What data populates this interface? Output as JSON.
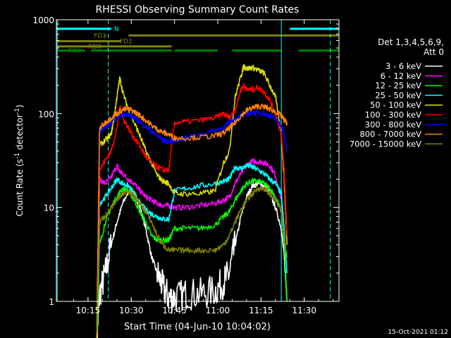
{
  "chart_data": {
    "type": "line",
    "title": "RHESSI Observing Summary Count Rates",
    "xlabel": "Start Time (04-Jun-10 10:04:02)",
    "ylabel_main": "Count Rate (s",
    "ylabel_sup1": "-1",
    "ylabel_mid": " detector",
    "ylabel_sup2": "-1",
    "ylabel_end": ")",
    "yscale": "log",
    "ylim": [
      1,
      1000
    ],
    "xlim_minutes": [
      0,
      98
    ],
    "x_ticks": [
      {
        "label": "10:15",
        "min": 10.97
      },
      {
        "label": "10:30",
        "min": 25.97
      },
      {
        "label": "10:45",
        "min": 40.97
      },
      {
        "label": "11:00",
        "min": 55.97
      },
      {
        "label": "11:15",
        "min": 70.97
      },
      {
        "label": "11:30",
        "min": 85.97
      }
    ],
    "y_ticks": [
      {
        "label": "1",
        "value": 1
      },
      {
        "label": "10",
        "value": 10
      },
      {
        "label": "100",
        "value": 100
      },
      {
        "label": "1000",
        "value": 1000
      }
    ],
    "legend_header": [
      "Det 1,3,4,5,6,9,",
      "Att 0"
    ],
    "timestamp": "15-Oct-2021 01:12",
    "series": [
      {
        "name": "3 - 6 keV",
        "color": "#ffffff",
        "points": [
          [
            14,
            0.4
          ],
          [
            15,
            1.2
          ],
          [
            17,
            2
          ],
          [
            19,
            4
          ],
          [
            21,
            7
          ],
          [
            23,
            11
          ],
          [
            25,
            15
          ],
          [
            27,
            14
          ],
          [
            29,
            10
          ],
          [
            31,
            6
          ],
          [
            33,
            3
          ],
          [
            35,
            2
          ],
          [
            37,
            1.4
          ],
          [
            39,
            1.1
          ],
          [
            41,
            1.1
          ],
          [
            45,
            1.2
          ],
          [
            50,
            1.2
          ],
          [
            55,
            1.3
          ],
          [
            58,
            1.6
          ],
          [
            60,
            2
          ],
          [
            62,
            4
          ],
          [
            64,
            8
          ],
          [
            66,
            13
          ],
          [
            68,
            17
          ],
          [
            70,
            18
          ],
          [
            72,
            17
          ],
          [
            74,
            14
          ],
          [
            76,
            10
          ],
          [
            78,
            6
          ],
          [
            79,
            3
          ],
          [
            80,
            1
          ]
        ]
      },
      {
        "name": "6 - 12 keV",
        "color": "#ff00ff",
        "points": [
          [
            14,
            0.4
          ],
          [
            15,
            20
          ],
          [
            17,
            18
          ],
          [
            19,
            21
          ],
          [
            21,
            28
          ],
          [
            22,
            24
          ],
          [
            23,
            23
          ],
          [
            25,
            20
          ],
          [
            27,
            18
          ],
          [
            29,
            15
          ],
          [
            31,
            13
          ],
          [
            33,
            12
          ],
          [
            35,
            11
          ],
          [
            37,
            10.5
          ],
          [
            39,
            10.5
          ],
          [
            41,
            10
          ],
          [
            45,
            10
          ],
          [
            50,
            10.5
          ],
          [
            55,
            11
          ],
          [
            58,
            12
          ],
          [
            60,
            13
          ],
          [
            62,
            18
          ],
          [
            64,
            23
          ],
          [
            66,
            28
          ],
          [
            68,
            31
          ],
          [
            70,
            31
          ],
          [
            72,
            30
          ],
          [
            74,
            28
          ],
          [
            76,
            22
          ],
          [
            78,
            12
          ],
          [
            79,
            6
          ],
          [
            80,
            2
          ]
        ]
      },
      {
        "name": "12 - 25 keV",
        "color": "#00ff00",
        "points": [
          [
            14,
            0.4
          ],
          [
            15,
            4
          ],
          [
            17,
            7
          ],
          [
            19,
            10
          ],
          [
            21,
            13
          ],
          [
            23,
            16
          ],
          [
            25,
            15
          ],
          [
            27,
            12
          ],
          [
            29,
            9
          ],
          [
            31,
            7
          ],
          [
            33,
            5
          ],
          [
            35,
            4.5
          ],
          [
            37,
            4.5
          ],
          [
            39,
            4.5
          ],
          [
            41,
            6
          ],
          [
            45,
            6
          ],
          [
            50,
            6
          ],
          [
            55,
            6.5
          ],
          [
            58,
            8
          ],
          [
            60,
            9
          ],
          [
            62,
            12
          ],
          [
            64,
            15
          ],
          [
            66,
            18
          ],
          [
            68,
            19
          ],
          [
            70,
            19
          ],
          [
            72,
            18
          ],
          [
            74,
            16
          ],
          [
            76,
            13
          ],
          [
            78,
            9
          ],
          [
            79,
            4
          ],
          [
            80,
            1
          ]
        ]
      },
      {
        "name": "25 - 50 keV",
        "color": "#00ffff",
        "points": [
          [
            14,
            0.4
          ],
          [
            15,
            11
          ],
          [
            17,
            13
          ],
          [
            19,
            16
          ],
          [
            21,
            20
          ],
          [
            23,
            18
          ],
          [
            25,
            17
          ],
          [
            27,
            14
          ],
          [
            29,
            11
          ],
          [
            31,
            9.5
          ],
          [
            33,
            8.5
          ],
          [
            35,
            8
          ],
          [
            37,
            7.5
          ],
          [
            39,
            7.5
          ],
          [
            41,
            15
          ],
          [
            45,
            16
          ],
          [
            50,
            17
          ],
          [
            55,
            18
          ],
          [
            58,
            19
          ],
          [
            60,
            20
          ],
          [
            62,
            27
          ],
          [
            64,
            26
          ],
          [
            66,
            28
          ],
          [
            68,
            27
          ],
          [
            70,
            25
          ],
          [
            72,
            23
          ],
          [
            74,
            20
          ],
          [
            76,
            18
          ],
          [
            78,
            14
          ],
          [
            79,
            6
          ],
          [
            80,
            2
          ]
        ]
      },
      {
        "name": "50 - 100 keV",
        "color": "#dddd00",
        "points": [
          [
            14,
            0.4
          ],
          [
            15,
            46
          ],
          [
            17,
            52
          ],
          [
            19,
            60
          ],
          [
            20,
            90
          ],
          [
            21,
            150
          ],
          [
            22,
            240
          ],
          [
            23,
            170
          ],
          [
            25,
            110
          ],
          [
            27,
            80
          ],
          [
            29,
            58
          ],
          [
            31,
            40
          ],
          [
            33,
            30
          ],
          [
            35,
            22
          ],
          [
            37,
            19
          ],
          [
            39,
            18
          ],
          [
            41,
            14
          ],
          [
            45,
            14
          ],
          [
            50,
            14
          ],
          [
            55,
            15
          ],
          [
            58,
            30
          ],
          [
            60,
            40
          ],
          [
            62,
            150
          ],
          [
            64,
            250
          ],
          [
            65,
            320
          ],
          [
            66,
            300
          ],
          [
            68,
            310
          ],
          [
            70,
            290
          ],
          [
            72,
            270
          ],
          [
            74,
            200
          ],
          [
            76,
            150
          ],
          [
            78,
            60
          ],
          [
            79,
            20
          ],
          [
            80,
            4
          ]
        ]
      },
      {
        "name": "100 - 300 keV",
        "color": "#ff0000",
        "points": [
          [
            14,
            0.4
          ],
          [
            15,
            25
          ],
          [
            17,
            32
          ],
          [
            19,
            40
          ],
          [
            21,
            70
          ],
          [
            22,
            120
          ],
          [
            23,
            90
          ],
          [
            25,
            70
          ],
          [
            27,
            55
          ],
          [
            29,
            45
          ],
          [
            31,
            35
          ],
          [
            33,
            30
          ],
          [
            35,
            27
          ],
          [
            37,
            25
          ],
          [
            39,
            25
          ],
          [
            41,
            80
          ],
          [
            45,
            82
          ],
          [
            50,
            85
          ],
          [
            55,
            90
          ],
          [
            58,
            100
          ],
          [
            60,
            90
          ],
          [
            62,
            110
          ],
          [
            64,
            180
          ],
          [
            65,
            200
          ],
          [
            66,
            180
          ],
          [
            68,
            180
          ],
          [
            70,
            190
          ],
          [
            72,
            170
          ],
          [
            74,
            140
          ],
          [
            76,
            100
          ],
          [
            78,
            60
          ],
          [
            79,
            25
          ],
          [
            80,
            5
          ]
        ]
      },
      {
        "name": "300 - 800 keV",
        "color": "#0000ff",
        "points": [
          [
            14,
            0.4
          ],
          [
            15,
            65
          ],
          [
            17,
            72
          ],
          [
            19,
            80
          ],
          [
            21,
            92
          ],
          [
            23,
            100
          ],
          [
            25,
            97
          ],
          [
            27,
            90
          ],
          [
            29,
            82
          ],
          [
            31,
            72
          ],
          [
            33,
            65
          ],
          [
            35,
            58
          ],
          [
            37,
            52
          ],
          [
            39,
            50
          ],
          [
            41,
            52
          ],
          [
            45,
            55
          ],
          [
            50,
            60
          ],
          [
            55,
            66
          ],
          [
            58,
            72
          ],
          [
            60,
            80
          ],
          [
            62,
            88
          ],
          [
            64,
            95
          ],
          [
            66,
            100
          ],
          [
            68,
            102
          ],
          [
            70,
            102
          ],
          [
            72,
            100
          ],
          [
            74,
            95
          ],
          [
            76,
            88
          ],
          [
            78,
            75
          ],
          [
            79,
            60
          ],
          [
            80,
            40
          ]
        ]
      },
      {
        "name": "800 - 7000 keV",
        "color": "#ff8000",
        "points": [
          [
            14,
            0.4
          ],
          [
            15,
            70
          ],
          [
            17,
            80
          ],
          [
            19,
            90
          ],
          [
            21,
            100
          ],
          [
            23,
            110
          ],
          [
            25,
            112
          ],
          [
            27,
            105
          ],
          [
            29,
            95
          ],
          [
            31,
            85
          ],
          [
            33,
            75
          ],
          [
            35,
            68
          ],
          [
            37,
            63
          ],
          [
            39,
            60
          ],
          [
            41,
            55
          ],
          [
            45,
            55
          ],
          [
            50,
            56
          ],
          [
            55,
            58
          ],
          [
            58,
            62
          ],
          [
            60,
            70
          ],
          [
            62,
            80
          ],
          [
            64,
            95
          ],
          [
            66,
            108
          ],
          [
            68,
            115
          ],
          [
            70,
            120
          ],
          [
            72,
            118
          ],
          [
            74,
            112
          ],
          [
            76,
            105
          ],
          [
            78,
            95
          ],
          [
            79,
            85
          ],
          [
            80,
            80
          ]
        ]
      },
      {
        "name": "7000 - 15000 keV",
        "color": "#808000",
        "points": [
          [
            14,
            0.4
          ],
          [
            15,
            7
          ],
          [
            17,
            8
          ],
          [
            19,
            10
          ],
          [
            21,
            12
          ],
          [
            23,
            14
          ],
          [
            25,
            15
          ],
          [
            27,
            13
          ],
          [
            29,
            11
          ],
          [
            31,
            9
          ],
          [
            33,
            7
          ],
          [
            35,
            5
          ],
          [
            37,
            4
          ],
          [
            39,
            3.5
          ],
          [
            41,
            3.5
          ],
          [
            45,
            3.5
          ],
          [
            50,
            3.5
          ],
          [
            55,
            3.5
          ],
          [
            58,
            4
          ],
          [
            60,
            5
          ],
          [
            62,
            7
          ],
          [
            64,
            9.5
          ],
          [
            66,
            12
          ],
          [
            68,
            14
          ],
          [
            70,
            16
          ],
          [
            72,
            16
          ],
          [
            74,
            14
          ],
          [
            76,
            12
          ],
          [
            78,
            9
          ],
          [
            79,
            5
          ],
          [
            80,
            3
          ]
        ]
      }
    ],
    "flag_bars": [
      {
        "name": "N",
        "color": "#00ffff",
        "label_x_min": 20,
        "segments": [
          [
            0,
            19
          ],
          [
            81,
            98
          ]
        ],
        "value": 800
      },
      {
        "name": "FD1",
        "color": "#808000",
        "label_x_min": 13,
        "segments": [
          [
            17,
            17.3
          ],
          [
            25,
            98
          ]
        ],
        "value": 680
      },
      {
        "name": "FD2",
        "color": "#808000",
        "label_x_min": 22,
        "segments": [
          [
            0,
            22
          ],
          [
            22,
            22.5
          ]
        ],
        "value": 590
      },
      {
        "name": "RD0",
        "color": "#808000",
        "label_x_min": 11,
        "segments": [
          [
            0,
            40
          ]
        ],
        "value": 520
      },
      {
        "name": "RD6",
        "color": "#008000",
        "label_x_min": 4,
        "segments": [
          [
            0,
            10
          ],
          [
            12,
            40
          ],
          [
            41,
            56
          ],
          [
            61,
            78
          ],
          [
            84,
            98
          ]
        ],
        "value": 470
      }
    ],
    "vlines": [
      {
        "min": 18,
        "color": "#00ffff",
        "style": "dashed"
      },
      {
        "min": 78,
        "color": "#00ffff",
        "style": "solid"
      },
      {
        "min": 95,
        "color": "#00ffff",
        "style": "dashed"
      },
      {
        "min": 0.3,
        "color": "#00ffff",
        "style": "solid"
      }
    ]
  }
}
